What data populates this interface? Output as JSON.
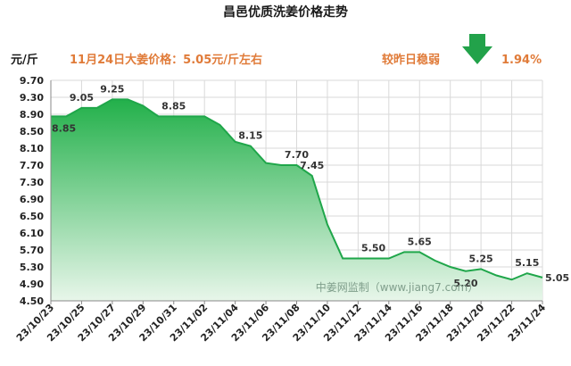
{
  "header": {
    "title": "昌邑优质洗姜价格走势",
    "unit": "元/斤",
    "price_note": "11月24日大姜价格：5.05元/斤左右",
    "compare_note": "较昨日稳弱",
    "change_percent": "1.94%",
    "arrow_icon": "down-arrow-icon",
    "accent_orange": "#e07b39",
    "arrow_color": "#22a24a"
  },
  "watermark": "中姜网监制（www.jiang7.com）",
  "chart_data": {
    "type": "area",
    "title": "昌邑优质洗姜价格走势",
    "ylabel": "元/斤",
    "xlabel": "",
    "ylim": [
      4.5,
      9.7
    ],
    "yticks": [
      "9.70",
      "9.30",
      "8.90",
      "8.50",
      "8.10",
      "7.70",
      "7.30",
      "6.90",
      "6.50",
      "6.10",
      "5.70",
      "5.30",
      "4.90",
      "4.50"
    ],
    "ytick_values": [
      9.7,
      9.3,
      8.9,
      8.5,
      8.1,
      7.7,
      7.3,
      6.9,
      6.5,
      6.1,
      5.7,
      5.3,
      4.9,
      4.5
    ],
    "xticks": [
      "23/10/23",
      "23/10/25",
      "23/10/27",
      "23/10/29",
      "23/10/31",
      "23/11/02",
      "23/11/04",
      "23/11/06",
      "23/11/08",
      "23/11/10",
      "23/11/12",
      "23/11/14",
      "23/11/16",
      "23/11/18",
      "23/11/20",
      "23/11/22",
      "23/11/24"
    ],
    "x": [
      "23/10/23",
      "23/10/24",
      "23/10/25",
      "23/10/26",
      "23/10/27",
      "23/10/28",
      "23/10/29",
      "23/10/30",
      "23/10/31",
      "23/11/01",
      "23/11/02",
      "23/11/03",
      "23/11/04",
      "23/11/05",
      "23/11/06",
      "23/11/07",
      "23/11/08",
      "23/11/09",
      "23/11/10",
      "23/11/11",
      "23/11/12",
      "23/11/13",
      "23/11/14",
      "23/11/15",
      "23/11/16",
      "23/11/17",
      "23/11/18",
      "23/11/19",
      "23/11/20",
      "23/11/21",
      "23/11/22",
      "23/11/23",
      "23/11/24"
    ],
    "values": [
      8.85,
      8.85,
      9.05,
      9.05,
      9.25,
      9.25,
      9.1,
      8.85,
      8.85,
      8.85,
      8.85,
      8.65,
      8.25,
      8.15,
      7.75,
      7.7,
      7.7,
      7.45,
      6.3,
      5.5,
      5.5,
      5.5,
      5.5,
      5.65,
      5.65,
      5.45,
      5.3,
      5.2,
      5.25,
      5.1,
      5.0,
      5.15,
      5.05
    ],
    "data_labels": [
      {
        "i": 0,
        "text": "8.85",
        "pos": "below"
      },
      {
        "i": 2,
        "text": "9.05",
        "pos": "above"
      },
      {
        "i": 4,
        "text": "9.25",
        "pos": "above"
      },
      {
        "i": 8,
        "text": "8.85",
        "pos": "above"
      },
      {
        "i": 13,
        "text": "8.15",
        "pos": "above"
      },
      {
        "i": 16,
        "text": "7.70",
        "pos": "above"
      },
      {
        "i": 17,
        "text": "7.45",
        "pos": "above"
      },
      {
        "i": 21,
        "text": "5.50",
        "pos": "above"
      },
      {
        "i": 24,
        "text": "5.65",
        "pos": "above"
      },
      {
        "i": 27,
        "text": "5.20",
        "pos": "below"
      },
      {
        "i": 28,
        "text": "5.25",
        "pos": "above"
      },
      {
        "i": 31,
        "text": "5.15",
        "pos": "above"
      },
      {
        "i": 32,
        "text": "5.05",
        "pos": "right"
      }
    ],
    "grid": true,
    "colors": {
      "line": "#1fa64a",
      "fill_top": "#22b04a",
      "fill_bottom": "#e8f6ea",
      "grid": "#d9d9d9"
    }
  }
}
